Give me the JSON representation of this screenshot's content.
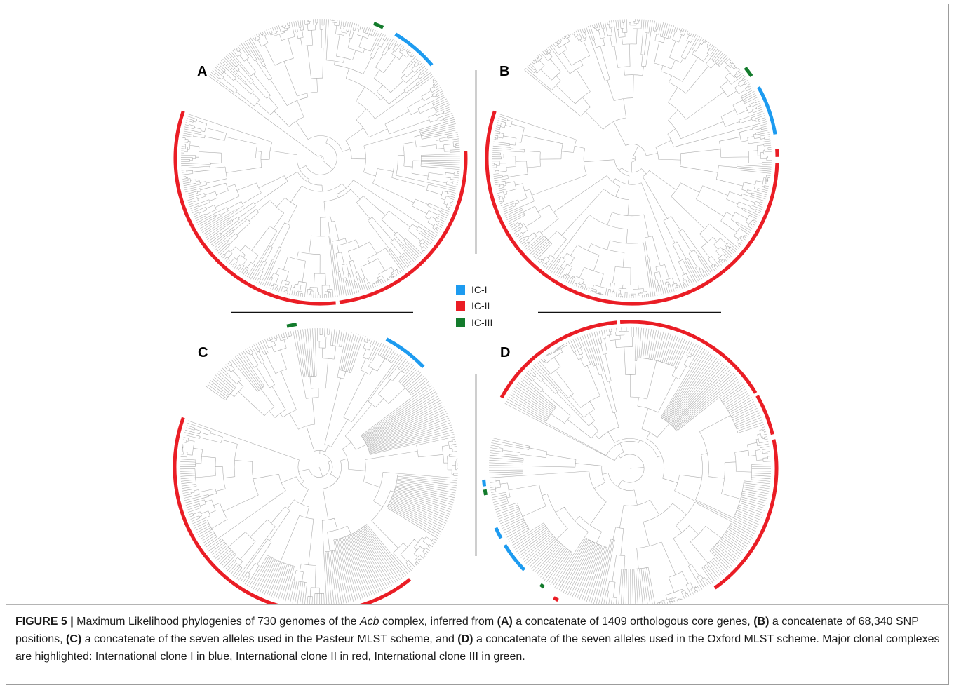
{
  "panels": [
    {
      "label": "A"
    },
    {
      "label": "B"
    },
    {
      "label": "C"
    },
    {
      "label": "D"
    }
  ],
  "legend": {
    "items": [
      {
        "label": "IC-I",
        "color": "#1d9bf0"
      },
      {
        "label": "IC-II",
        "color": "#ea1d25"
      },
      {
        "label": "IC-III",
        "color": "#137b2c"
      }
    ]
  },
  "tree_branch_color": "#a9a9a9",
  "caption": {
    "segments": [
      "FIGURE 5 |",
      " Maximum Likelihood phylogenies of 730 genomes of the ",
      "Acb",
      " complex, inferred from ",
      "(A)",
      " a concatenate of 1409 orthologous core genes, ",
      "(B)",
      " a concatenate of 68,340 SNP positions, ",
      "(C)",
      " a concatenate of the seven alleles used in the Pasteur MLST scheme, and ",
      "(D)",
      " a concatenate of the seven alleles used in the Oxford MLST scheme. Major clonal complexes are highlighted: International clone I in blue, International clone II in red, International clone III in green."
    ]
  }
}
